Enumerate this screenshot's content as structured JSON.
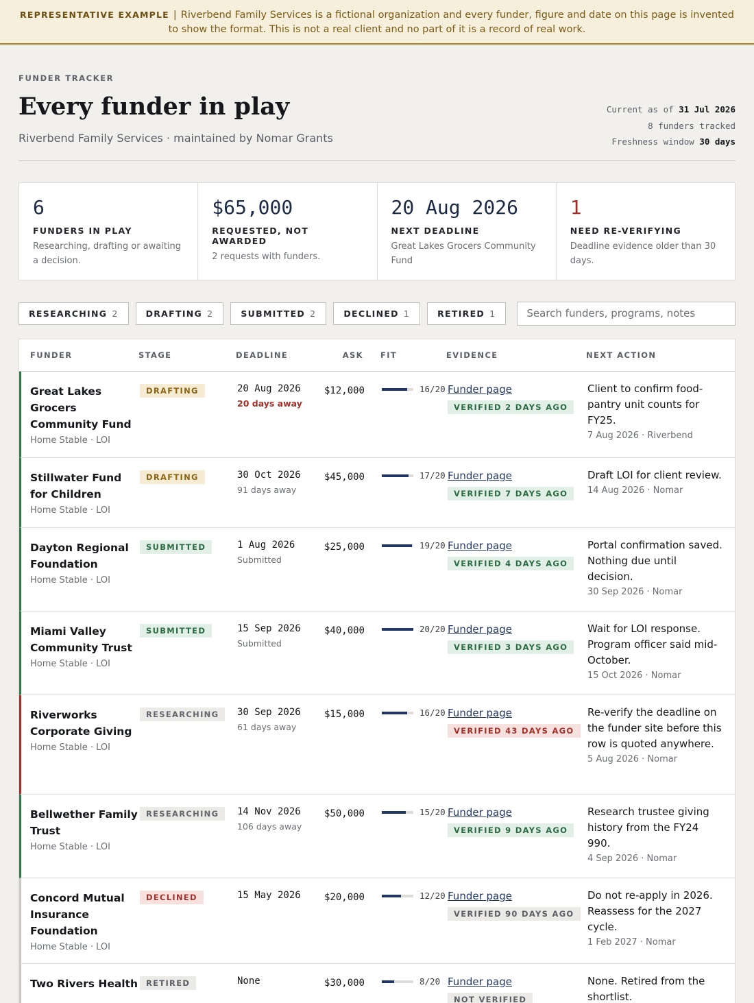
{
  "banner": {
    "tag": "REPRESENTATIVE EXAMPLE",
    "separator": "|",
    "text": "Riverbend Family Services is a fictional organization and every funder, figure and date on this page is invented to show the format. This is not a real client and no part of it is a record of real work."
  },
  "header": {
    "eyebrow": "FUNDER TRACKER",
    "title": "Every funder in play",
    "subtitle": "Riverbend Family Services · maintained by Nomar Grants",
    "meta": {
      "current_label": "Current as of",
      "current_value": "31 Jul 2026",
      "tracked": "8 funders tracked",
      "window_label": "Freshness window",
      "window_value": "30 days"
    }
  },
  "kpis": [
    {
      "value": "6",
      "label": "FUNDERS IN PLAY",
      "desc": "Researching, drafting or awaiting a decision."
    },
    {
      "value": "$65,000",
      "label": "REQUESTED, NOT AWARDED",
      "desc": "2 requests with funders."
    },
    {
      "value": "20 Aug 2026",
      "label": "NEXT DEADLINE",
      "desc": "Great Lakes Grocers Community Fund"
    },
    {
      "value": "1",
      "label": "NEED RE-VERIFYING",
      "desc": "Deadline evidence older than 30 days."
    }
  ],
  "filters": [
    {
      "label": "RESEARCHING",
      "count": "2"
    },
    {
      "label": "DRAFTING",
      "count": "2"
    },
    {
      "label": "SUBMITTED",
      "count": "2"
    },
    {
      "label": "DECLINED",
      "count": "1"
    },
    {
      "label": "RETIRED",
      "count": "1"
    }
  ],
  "search": {
    "placeholder": "Search funders, programs, notes"
  },
  "table": {
    "headers": [
      "FUNDER",
      "STAGE",
      "DEADLINE",
      "ASK",
      "FIT",
      "EVIDENCE",
      "NEXT ACTION"
    ],
    "rows": [
      {
        "funder": "Great Lakes Grocers Community Fund",
        "program": "Home Stable · LOI",
        "stage": "DRAFTING",
        "deadline": "20 Aug 2026",
        "deadline_note": "20 days away",
        "ask": "$12,000",
        "fit": "16/20",
        "fit_value": 0.8,
        "evidence_link": "Funder page",
        "evidence_badge": "VERIFIED 2 DAYS AGO",
        "next_action": "Client to confirm food-pantry unit counts for FY25.",
        "action_meta": "7 Aug 2026 · Riverbend"
      },
      {
        "funder": "Stillwater Fund for Children",
        "program": "Home Stable · LOI",
        "stage": "DRAFTING",
        "deadline": "30 Oct 2026",
        "deadline_note": "91 days away",
        "ask": "$45,000",
        "fit": "17/20",
        "fit_value": 0.85,
        "evidence_link": "Funder page",
        "evidence_badge": "VERIFIED 7 DAYS AGO",
        "next_action": "Draft LOI for client review.",
        "action_meta": "14 Aug 2026 · Nomar"
      },
      {
        "funder": "Dayton Regional Foundation",
        "program": "Home Stable · LOI",
        "stage": "SUBMITTED",
        "deadline": "1 Aug 2026",
        "deadline_note": "Submitted",
        "ask": "$25,000",
        "fit": "19/20",
        "fit_value": 0.95,
        "evidence_link": "Funder page",
        "evidence_badge": "VERIFIED 4 DAYS AGO",
        "next_action": "Portal confirmation saved. Nothing due until decision.",
        "action_meta": "30 Sep 2026 · Nomar"
      },
      {
        "funder": "Miami Valley Community Trust",
        "program": "Home Stable · LOI",
        "stage": "SUBMITTED",
        "deadline": "15 Sep 2026",
        "deadline_note": "Submitted",
        "ask": "$40,000",
        "fit": "20/20",
        "fit_value": 1.0,
        "evidence_link": "Funder page",
        "evidence_badge": "VERIFIED 3 DAYS AGO",
        "next_action": "Wait for LOI response. Program officer said mid-October.",
        "action_meta": "15 Oct 2026 · Nomar"
      },
      {
        "funder": "Riverworks Corporate Giving",
        "program": "Home Stable · LOI",
        "stage": "RESEARCHING",
        "deadline": "30 Sep 2026",
        "deadline_note": "61 days away",
        "ask": "$15,000",
        "fit": "16/20",
        "fit_value": 0.8,
        "evidence_link": "Funder page",
        "evidence_badge": "VERIFIED 43 DAYS AGO",
        "next_action": "Re-verify the deadline on the funder site before this row is quoted anywhere.",
        "action_meta": "5 Aug 2026 · Nomar"
      },
      {
        "funder": "Bellwether Family Trust",
        "program": "Home Stable · LOI",
        "stage": "RESEARCHING",
        "deadline": "14 Nov 2026",
        "deadline_note": "106 days away",
        "ask": "$50,000",
        "fit": "15/20",
        "fit_value": 0.75,
        "evidence_link": "Funder page",
        "evidence_badge": "VERIFIED 9 DAYS AGO",
        "next_action": "Research trustee giving history from the FY24 990.",
        "action_meta": "4 Sep 2026 · Nomar"
      },
      {
        "funder": "Concord Mutual Insurance Foundation",
        "program": "Home Stable · LOI",
        "stage": "DECLINED",
        "deadline": "15 May 2026",
        "deadline_note": "",
        "ask": "$20,000",
        "fit": "12/20",
        "fit_value": 0.6,
        "evidence_link": "Funder page",
        "evidence_badge": "VERIFIED 90 DAYS AGO",
        "next_action": "Do not re-apply in 2026. Reassess for the 2027 cycle.",
        "action_meta": "1 Feb 2027 · Nomar"
      },
      {
        "funder": "Two Rivers Health",
        "program": "",
        "stage": "RETIRED",
        "deadline": "None",
        "deadline_note": "",
        "ask": "$30,000",
        "fit": "8/20",
        "fit_value": 0.4,
        "evidence_link": "Funder page",
        "evidence_badge": "NOT VERIFIED",
        "next_action": "None. Retired from the shortlist.",
        "action_meta": ""
      }
    ]
  },
  "colors": {
    "accent_navy": "#213763",
    "ok_green": "#2f7a4a",
    "alert_red": "#a3302a",
    "banner_gold": "#a37f2a"
  }
}
